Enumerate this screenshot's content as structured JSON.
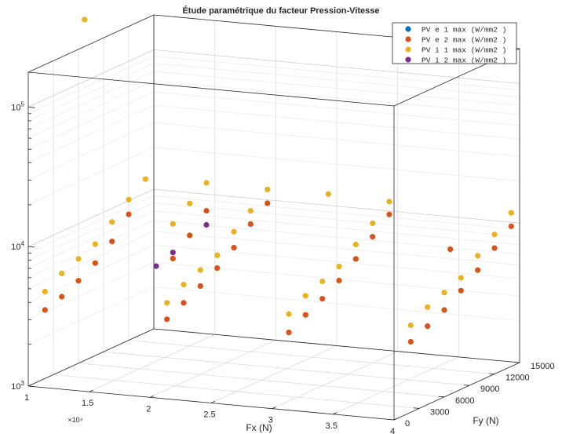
{
  "chart_data": {
    "type": "scatter",
    "title": "Étude paramétrique du facteur Pression-Vitesse",
    "xlabel": "Fx (N)",
    "ylabel": "Fy (N)",
    "zlabel": "",
    "x_ticks": [
      "1",
      "1.5",
      "2",
      "2.5",
      "3",
      "3.5",
      "4"
    ],
    "x_exponent": "×10⁴",
    "y_ticks": [
      "0",
      "3000",
      "6000",
      "9000",
      "12000",
      "15000"
    ],
    "z_ticks": [
      {
        "base": "10",
        "exp": "3"
      },
      {
        "base": "10",
        "exp": "4"
      },
      {
        "base": "10",
        "exp": "5"
      }
    ],
    "z_scale": "log",
    "grid": true,
    "legend_position": "top-right",
    "series": [
      {
        "name": "PV e 1 max (W/mm2 )",
        "color": "#0072BD",
        "points": []
      },
      {
        "name": "PV e 2 max (W/mm2 )",
        "color": "#D95319",
        "points": [
          [
            10000,
            2000,
            3100
          ],
          [
            10000,
            4000,
            3400
          ],
          [
            10000,
            6000,
            3900
          ],
          [
            10000,
            8000,
            4600
          ],
          [
            10000,
            10000,
            5800
          ],
          [
            10000,
            12000,
            8000
          ],
          [
            20000,
            2000,
            3200
          ],
          [
            20000,
            4000,
            3700
          ],
          [
            20000,
            6000,
            4300
          ],
          [
            20000,
            8000,
            5100
          ],
          [
            20000,
            10000,
            6300
          ],
          [
            20000,
            12000,
            8200
          ],
          [
            20000,
            14000,
            10200
          ],
          [
            30000,
            2000,
            3100
          ],
          [
            30000,
            4000,
            3650
          ],
          [
            30000,
            6000,
            4200
          ],
          [
            30000,
            8000,
            5000
          ],
          [
            30000,
            10000,
            6300
          ],
          [
            30000,
            12000,
            8000
          ],
          [
            30000,
            14000,
            10200
          ],
          [
            40000,
            2000,
            3200
          ],
          [
            40000,
            4000,
            3650
          ],
          [
            40000,
            6000,
            4200
          ],
          [
            40000,
            8000,
            5100
          ],
          [
            40000,
            10000,
            6300
          ],
          [
            40000,
            12000,
            8000
          ],
          [
            40000,
            14000,
            10100
          ],
          [
            15000,
            10000,
            4800
          ],
          [
            15000,
            12000,
            6200
          ],
          [
            15000,
            14000,
            8200
          ],
          [
            35000,
            14000,
            6300
          ]
        ]
      },
      {
        "name": "PV i 1 max (W/mm2 )",
        "color": "#EDB120",
        "points": [
          [
            10000,
            2000,
            4200
          ],
          [
            10000,
            4000,
            5000
          ],
          [
            10000,
            6000,
            5600
          ],
          [
            10000,
            8000,
            6300
          ],
          [
            10000,
            10000,
            8000
          ],
          [
            10000,
            12000,
            10200
          ],
          [
            10000,
            14000,
            12600
          ],
          [
            20000,
            2000,
            4200
          ],
          [
            20000,
            4000,
            5000
          ],
          [
            20000,
            6000,
            5600
          ],
          [
            20000,
            8000,
            6300
          ],
          [
            20000,
            10000,
            8200
          ],
          [
            20000,
            12000,
            10200
          ],
          [
            20000,
            14000,
            12800
          ],
          [
            30000,
            2000,
            4200
          ],
          [
            30000,
            4000,
            5000
          ],
          [
            30000,
            6000,
            5600
          ],
          [
            30000,
            8000,
            6300
          ],
          [
            30000,
            10000,
            8000
          ],
          [
            30000,
            12000,
            10000
          ],
          [
            30000,
            14000,
            12600
          ],
          [
            40000,
            2000,
            4200
          ],
          [
            40000,
            4000,
            5000
          ],
          [
            40000,
            6000,
            5600
          ],
          [
            40000,
            8000,
            6300
          ],
          [
            40000,
            10000,
            8000
          ],
          [
            40000,
            12000,
            10000
          ],
          [
            40000,
            14000,
            12600
          ],
          [
            15000,
            10000,
            8500
          ],
          [
            15000,
            12000,
            10500
          ],
          [
            15000,
            14000,
            13000
          ],
          [
            25000,
            14000,
            13000
          ],
          [
            5000,
            14000,
            160000
          ]
        ]
      },
      {
        "name": "PV i 2 max (W/mm2 )",
        "color": "#7E2F8E",
        "points": [
          [
            15000,
            8000,
            4800
          ],
          [
            15000,
            10000,
            5300
          ],
          [
            15000,
            14000,
            6500
          ]
        ]
      }
    ]
  }
}
